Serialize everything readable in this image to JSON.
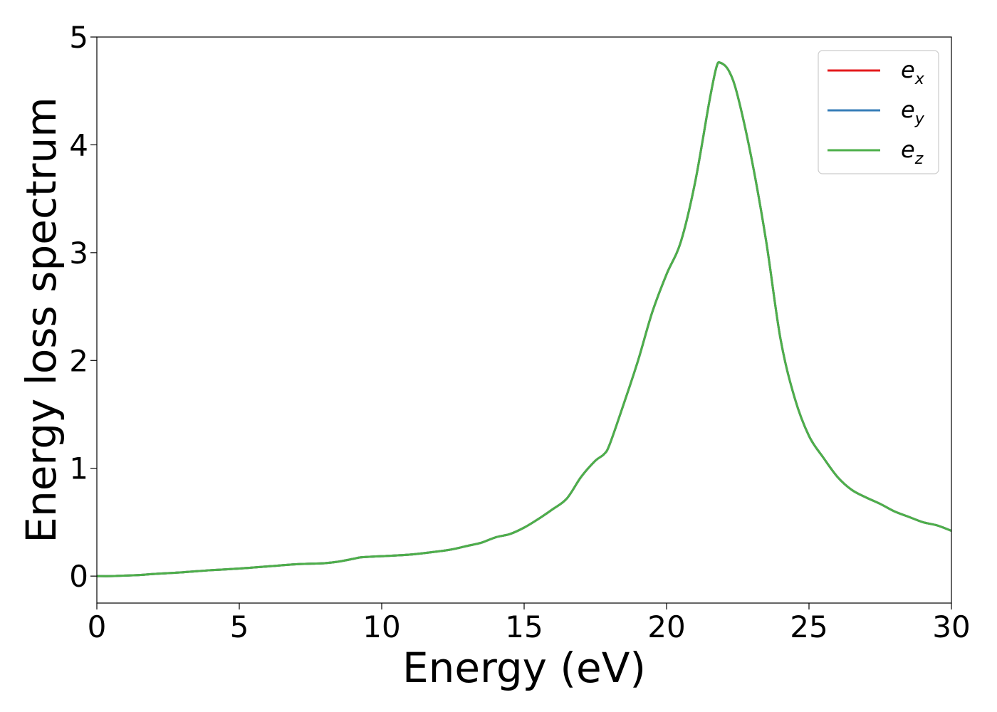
{
  "chart_data": {
    "type": "line",
    "xlabel": "Energy (eV)",
    "ylabel": "Energy loss spectrum",
    "xlim": [
      0,
      30
    ],
    "ylim": [
      -0.25,
      5
    ],
    "xticks": [
      "0",
      "5",
      "10",
      "15",
      "20",
      "25",
      "30"
    ],
    "yticks": [
      "0",
      "1",
      "2",
      "3",
      "4",
      "5"
    ],
    "grid": false,
    "legend_position": "top-right",
    "legend": [
      {
        "base": "e",
        "sub": "x",
        "color": "#e41a1c"
      },
      {
        "base": "e",
        "sub": "y",
        "color": "#377eb8"
      },
      {
        "base": "e",
        "sub": "z",
        "color": "#4daf4a"
      }
    ],
    "x": [
      0,
      0.5,
      1,
      1.5,
      2,
      3,
      4,
      5,
      6,
      7,
      8,
      8.5,
      9,
      9.3,
      10,
      11,
      12,
      12.5,
      13,
      13.5,
      14,
      14.5,
      15,
      15.5,
      16,
      16.5,
      17,
      17.5,
      17.8,
      18,
      18.5,
      19,
      19.5,
      20,
      20.5,
      21,
      21.5,
      21.75,
      21.9,
      22.2,
      22.5,
      23,
      23.5,
      24,
      24.5,
      25,
      25.5,
      26,
      26.5,
      27,
      27.5,
      28,
      28.5,
      29,
      29.5,
      30
    ],
    "series": [
      {
        "name": "e_x",
        "color": "#e41a1c",
        "values": [
          0.0,
          0.0,
          0.005,
          0.01,
          0.02,
          0.035,
          0.055,
          0.07,
          0.09,
          0.11,
          0.12,
          0.135,
          0.16,
          0.175,
          0.185,
          0.2,
          0.23,
          0.25,
          0.28,
          0.31,
          0.36,
          0.39,
          0.45,
          0.53,
          0.62,
          0.72,
          0.92,
          1.07,
          1.13,
          1.22,
          1.6,
          2.0,
          2.45,
          2.8,
          3.1,
          3.65,
          4.4,
          4.72,
          4.76,
          4.68,
          4.45,
          3.85,
          3.1,
          2.2,
          1.65,
          1.3,
          1.1,
          0.92,
          0.8,
          0.73,
          0.67,
          0.6,
          0.55,
          0.5,
          0.47,
          0.42
        ]
      },
      {
        "name": "e_y",
        "color": "#377eb8",
        "values": [
          0.0,
          0.0,
          0.005,
          0.01,
          0.02,
          0.035,
          0.055,
          0.07,
          0.09,
          0.11,
          0.12,
          0.135,
          0.16,
          0.175,
          0.185,
          0.2,
          0.23,
          0.25,
          0.28,
          0.31,
          0.36,
          0.39,
          0.45,
          0.53,
          0.62,
          0.72,
          0.92,
          1.07,
          1.13,
          1.22,
          1.6,
          2.0,
          2.45,
          2.8,
          3.1,
          3.65,
          4.4,
          4.72,
          4.76,
          4.68,
          4.45,
          3.85,
          3.1,
          2.2,
          1.65,
          1.3,
          1.1,
          0.92,
          0.8,
          0.73,
          0.67,
          0.6,
          0.55,
          0.5,
          0.47,
          0.42
        ]
      },
      {
        "name": "e_z",
        "color": "#4daf4a",
        "values": [
          0.0,
          0.0,
          0.005,
          0.01,
          0.02,
          0.035,
          0.055,
          0.07,
          0.09,
          0.11,
          0.12,
          0.135,
          0.16,
          0.175,
          0.185,
          0.2,
          0.23,
          0.25,
          0.28,
          0.31,
          0.36,
          0.39,
          0.45,
          0.53,
          0.62,
          0.72,
          0.92,
          1.07,
          1.13,
          1.22,
          1.6,
          2.0,
          2.45,
          2.8,
          3.1,
          3.65,
          4.4,
          4.72,
          4.76,
          4.68,
          4.45,
          3.85,
          3.1,
          2.2,
          1.65,
          1.3,
          1.1,
          0.92,
          0.8,
          0.73,
          0.67,
          0.6,
          0.55,
          0.5,
          0.47,
          0.42
        ]
      }
    ]
  }
}
